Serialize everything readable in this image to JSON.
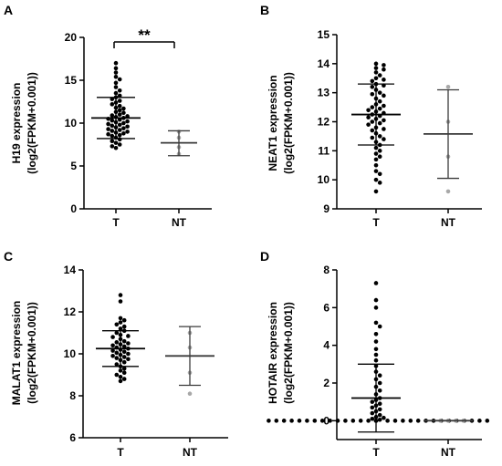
{
  "chart_data": [
    {
      "panel": "A",
      "type": "scatter",
      "ylabel": [
        "H19 expression",
        "(log2(FPKM+0.001))"
      ],
      "ylim": [
        0,
        20
      ],
      "yticks": [
        0,
        5,
        10,
        15,
        20
      ],
      "categories": [
        "T",
        "NT"
      ],
      "annotation": "**",
      "groups": [
        {
          "name": "T",
          "color": "#000000",
          "mean": 10.6,
          "sd_low": 8.2,
          "sd_high": 13.0,
          "values": [
            17.0,
            16.4,
            15.9,
            15.4,
            15.1,
            14.7,
            14.2,
            13.8,
            13.5,
            13.2,
            13.0,
            12.8,
            12.6,
            12.4,
            12.2,
            12.0,
            11.8,
            11.7,
            11.5,
            11.3,
            11.2,
            11.0,
            10.9,
            10.8,
            10.7,
            10.6,
            10.5,
            10.4,
            10.3,
            10.2,
            10.1,
            10.0,
            9.9,
            9.8,
            9.7,
            9.6,
            9.5,
            9.4,
            9.3,
            9.2,
            9.1,
            9.0,
            8.9,
            8.8,
            8.7,
            8.6,
            8.5,
            8.3,
            8.1,
            7.9,
            7.7,
            7.5,
            7.3,
            7.1
          ]
        },
        {
          "name": "NT",
          "color": "#a8a8a8",
          "mean": 7.7,
          "sd_low": 6.2,
          "sd_high": 9.1,
          "values": [
            9.0,
            8.3,
            7.2,
            6.4
          ]
        }
      ]
    },
    {
      "panel": "B",
      "type": "scatter",
      "ylabel": [
        "NEAT1 expression",
        "(log2(FPKM+0.001))"
      ],
      "ylim": [
        9,
        15
      ],
      "yticks": [
        9,
        10,
        11,
        12,
        13,
        14,
        15
      ],
      "categories": [
        "T",
        "NT"
      ],
      "groups": [
        {
          "name": "T",
          "color": "#000000",
          "mean": 12.25,
          "sd_low": 11.2,
          "sd_high": 13.3,
          "values": [
            14.0,
            13.95,
            13.85,
            13.8,
            13.7,
            13.6,
            13.5,
            13.45,
            13.4,
            13.3,
            13.25,
            13.2,
            13.1,
            13.0,
            12.95,
            12.9,
            12.8,
            12.7,
            12.6,
            12.55,
            12.5,
            12.45,
            12.4,
            12.35,
            12.3,
            12.25,
            12.2,
            12.15,
            12.1,
            12.05,
            12.0,
            11.95,
            11.9,
            11.8,
            11.75,
            11.7,
            11.6,
            11.5,
            11.45,
            11.4,
            11.3,
            11.2,
            11.1,
            11.0,
            10.9,
            10.8,
            10.7,
            10.5,
            10.3,
            10.2,
            10.0,
            9.9,
            9.6
          ]
        },
        {
          "name": "NT",
          "color": "#a8a8a8",
          "mean": 11.58,
          "sd_low": 10.05,
          "sd_high": 13.1,
          "values": [
            13.2,
            12.0,
            10.8,
            9.6
          ]
        }
      ]
    },
    {
      "panel": "C",
      "type": "scatter",
      "ylabel": [
        "MALAT1 expression",
        "(log2(FPKM+0.001))"
      ],
      "ylim": [
        6,
        14
      ],
      "yticks": [
        6,
        8,
        10,
        12,
        14
      ],
      "categories": [
        "T",
        "NT"
      ],
      "groups": [
        {
          "name": "T",
          "color": "#000000",
          "mean": 10.25,
          "sd_low": 9.4,
          "sd_high": 11.1,
          "values": [
            12.8,
            12.5,
            11.7,
            11.6,
            11.5,
            11.4,
            11.3,
            11.2,
            11.1,
            11.0,
            10.9,
            10.85,
            10.8,
            10.7,
            10.6,
            10.55,
            10.5,
            10.45,
            10.4,
            10.35,
            10.3,
            10.25,
            10.2,
            10.15,
            10.1,
            10.05,
            10.0,
            9.95,
            9.9,
            9.85,
            9.8,
            9.75,
            9.7,
            9.6,
            9.5,
            9.4,
            9.3,
            9.2,
            9.1,
            9.0,
            8.9,
            8.8,
            8.7
          ]
        },
        {
          "name": "NT",
          "color": "#a8a8a8",
          "mean": 9.9,
          "sd_low": 8.5,
          "sd_high": 11.3,
          "values": [
            11.0,
            10.3,
            9.1,
            8.1
          ]
        }
      ]
    },
    {
      "panel": "D",
      "type": "scatter",
      "ylabel": [
        "HOTAIR expression",
        "(log2(FPKM+0.001))"
      ],
      "ylim": [
        -1,
        8
      ],
      "yticks": [
        0,
        2,
        4,
        6,
        8
      ],
      "categories": [
        "T",
        "NT"
      ],
      "groups": [
        {
          "name": "T",
          "color": "#000000",
          "mean": 1.2,
          "sd_low": -0.6,
          "sd_high": 3.0,
          "values": [
            7.3,
            6.4,
            6.0,
            5.2,
            5.0,
            4.6,
            4.2,
            3.8,
            3.5,
            3.2,
            2.9,
            2.6,
            2.4,
            2.2,
            2.0,
            1.8,
            1.6,
            1.4,
            1.2,
            1.1,
            1.0,
            0.9,
            0.8,
            0.7,
            0.6,
            0.5,
            0.4,
            0.3,
            0.2,
            0.15,
            0.1,
            0.05,
            0.0,
            0.0,
            0.0,
            0.0,
            0.0,
            0.0,
            0.0,
            0.0,
            0.0,
            0.0,
            0.0,
            0.0,
            0.0,
            0.0,
            0.0,
            0.0,
            0.0,
            0.0,
            0.0,
            0.0,
            0.0,
            0.0,
            0.0,
            0.0,
            0.0,
            0.0,
            0.0,
            0.0,
            0.0,
            0.0,
            0.0,
            0.0
          ]
        },
        {
          "name": "NT",
          "color": "#a8a8a8",
          "mean": 0.0,
          "sd_low": 0.0,
          "sd_high": 0.0,
          "values": [
            0.0,
            0.0,
            0.0,
            0.0
          ]
        }
      ]
    }
  ]
}
